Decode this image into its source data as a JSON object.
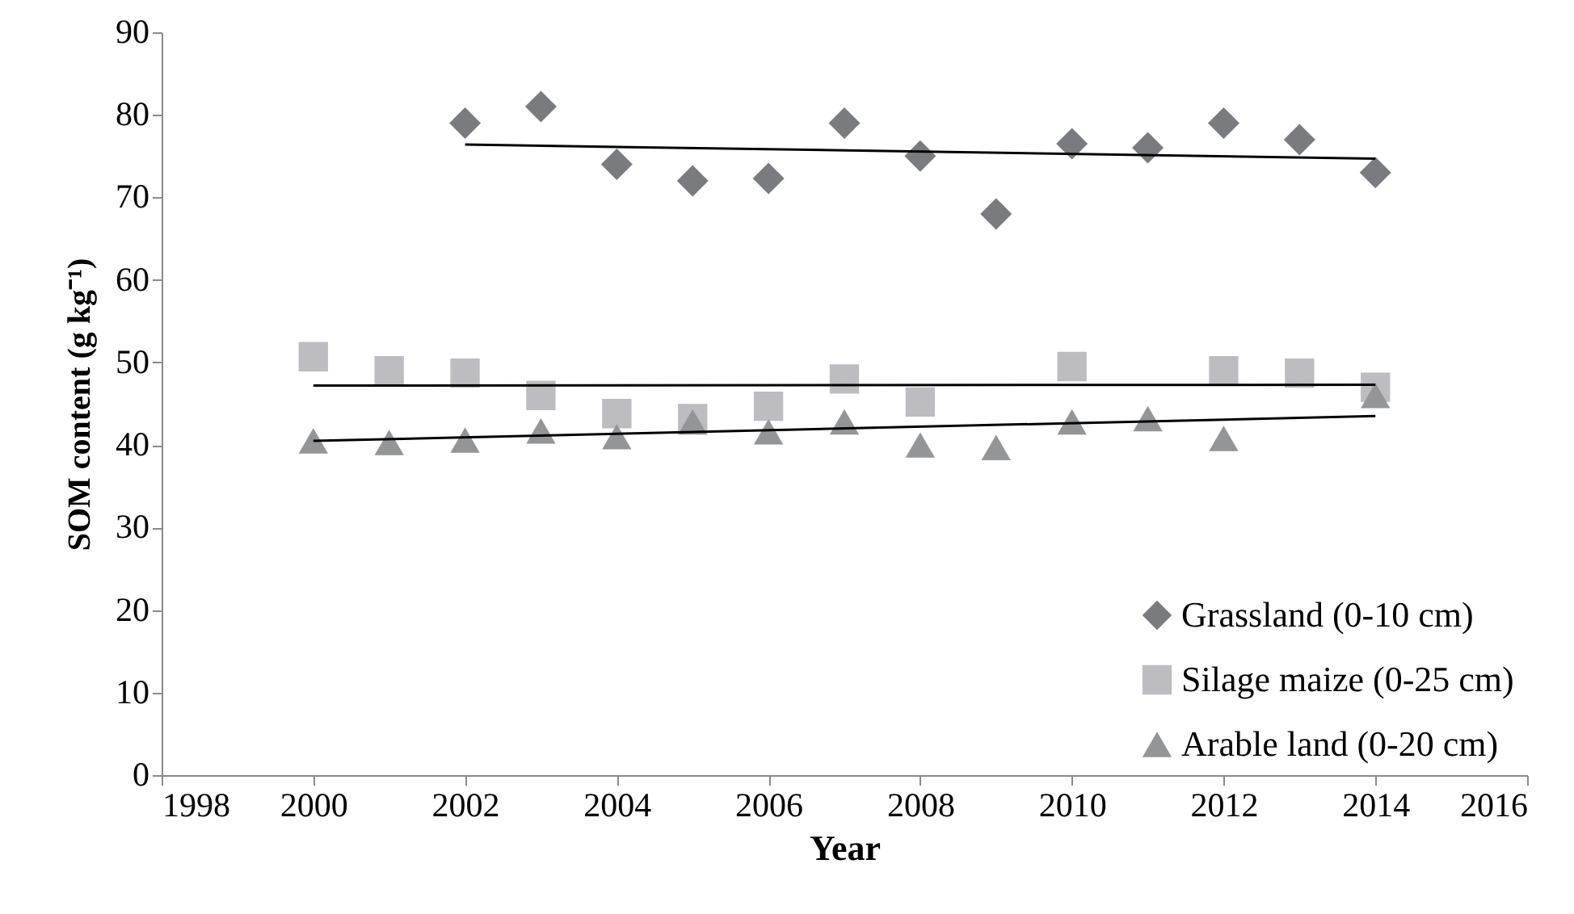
{
  "chart_data": {
    "type": "scatter",
    "xlabel": "Year",
    "ylabel": "SOM content (g kg⁻¹)",
    "xlim": [
      1998,
      2016
    ],
    "xticks": [
      1998,
      2000,
      2002,
      2004,
      2006,
      2008,
      2010,
      2012,
      2014,
      2016
    ],
    "ylim": [
      0,
      90
    ],
    "yticks": [
      0,
      10,
      20,
      30,
      40,
      50,
      60,
      70,
      80,
      90
    ],
    "grid": false,
    "legend": "bottom right",
    "series": [
      {
        "name": "Grassland (0-10 cm)",
        "color": "#7a7b7f",
        "marker": "diamond",
        "x": [
          2002,
          2003,
          2004,
          2005,
          2006,
          2007,
          2008,
          2009,
          2010,
          2011,
          2012,
          2013,
          2014
        ],
        "values": [
          79,
          81,
          74,
          72,
          72.3,
          79,
          75,
          68,
          76.5,
          76,
          79,
          77,
          73
        ]
      },
      {
        "name": "Silage maize (0-25 cm)",
        "color": "#bdbdc1",
        "marker": "square",
        "x": [
          2000,
          2001,
          2002,
          2003,
          2004,
          2005,
          2006,
          2007,
          2008,
          2010,
          2012,
          2013,
          2014
        ],
        "values": [
          50.7,
          49,
          48.7,
          46,
          43.8,
          43.2,
          44.7,
          48,
          45.2,
          49.5,
          49,
          48.7,
          47
        ]
      },
      {
        "name": "Arable land (0-20 cm)",
        "color": "#949597",
        "marker": "triangle",
        "x": [
          2000,
          2001,
          2002,
          2003,
          2004,
          2005,
          2006,
          2007,
          2008,
          2009,
          2010,
          2011,
          2012,
          2014
        ],
        "values": [
          40.5,
          40.3,
          40.6,
          41.7,
          41,
          42.8,
          41.6,
          42.8,
          40,
          39.7,
          42.8,
          43.2,
          40.8,
          46
        ]
      },
      {
        "type": "line",
        "color": "#000000",
        "marker": "none",
        "x": [
          2002,
          2014
        ],
        "values": [
          76.4,
          74.7
        ]
      },
      {
        "type": "line",
        "color": "#000000",
        "marker": "none",
        "x": [
          2000,
          2014
        ],
        "values": [
          47.2,
          47.3
        ]
      },
      {
        "type": "line",
        "color": "#000000",
        "marker": "none",
        "x": [
          2000,
          2014
        ],
        "values": [
          40.5,
          43.5
        ]
      }
    ]
  }
}
